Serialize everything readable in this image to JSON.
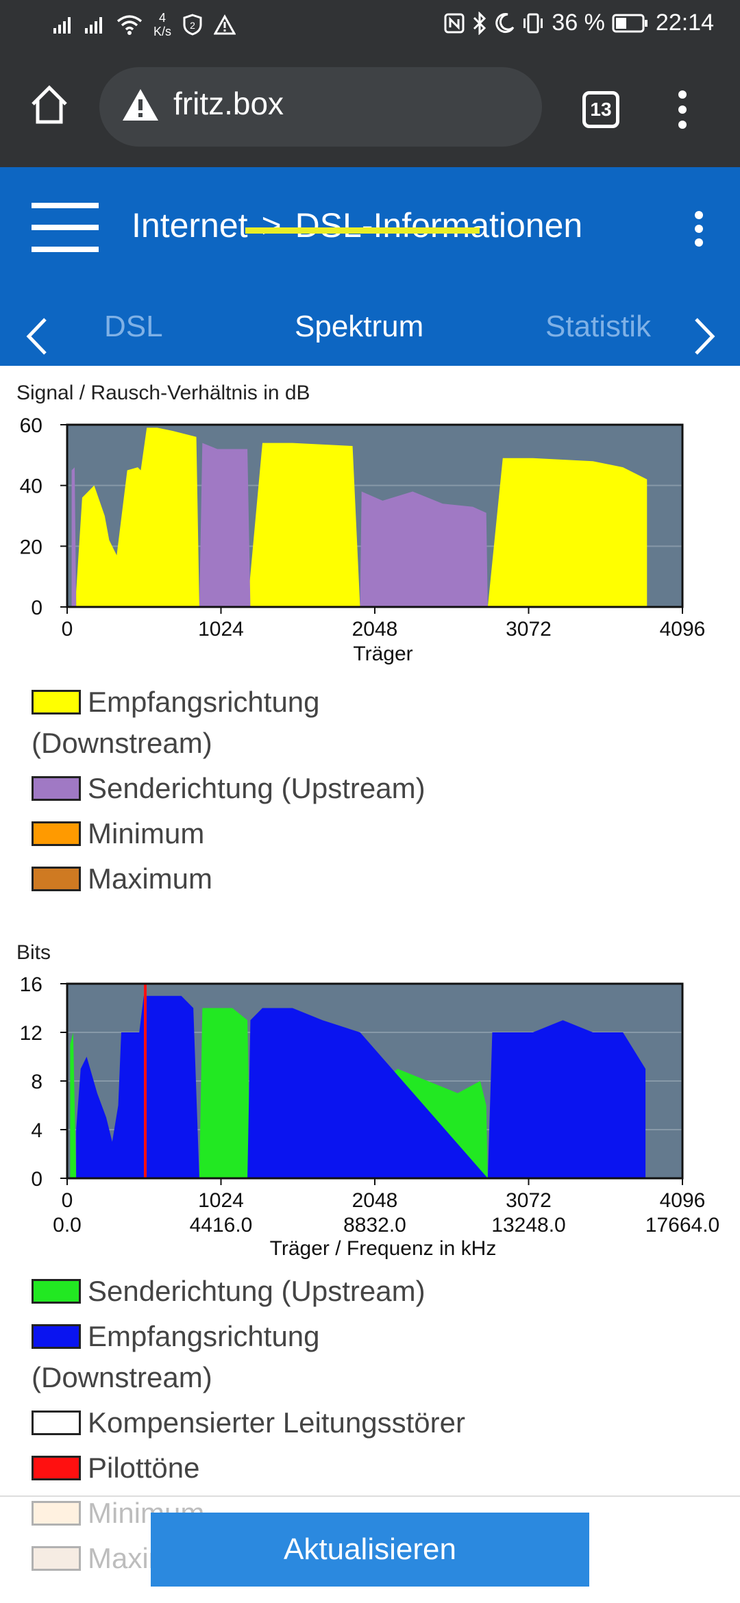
{
  "status_bar": {
    "speed_value": "4",
    "speed_unit": "K/s",
    "battery": "36 %",
    "time": "22:14",
    "icons": [
      "signal-icon",
      "signal-icon",
      "wifi-icon",
      "vpn-icon",
      "warning-icon",
      "nfc-icon",
      "bluetooth-icon",
      "moon-icon",
      "vibrate-icon",
      "battery-icon"
    ]
  },
  "browser": {
    "url": "fritz.box",
    "tab_count": "13"
  },
  "header": {
    "crumb_section": "Internet",
    "crumb_separator": ">",
    "crumb_page": "DSL-Informationen"
  },
  "tabs": [
    {
      "label": "DSL",
      "active": false
    },
    {
      "label": "Spektrum",
      "active": true
    },
    {
      "label": "Statistik",
      "active": false
    }
  ],
  "snr_chart": {
    "title": "Signal / Rausch-Verhältnis in dB",
    "xlabel": "Träger",
    "y_ticks": [
      "0",
      "20",
      "40",
      "60"
    ],
    "x_ticks": [
      "0",
      "1024",
      "2048",
      "3072",
      "4096"
    ],
    "legend": [
      {
        "label": "Empfangsrichtung (Downstream)",
        "color": "#ffff00"
      },
      {
        "label": "Senderichtung (Upstream)",
        "color": "#a079c4"
      },
      {
        "label": "Minimum",
        "color": "#ff9a00"
      },
      {
        "label": "Maximum",
        "color": "#cf7a22"
      }
    ]
  },
  "bits_chart": {
    "title": "Bits",
    "xlabel": "Träger / Frequenz in kHz",
    "y_ticks": [
      "0",
      "4",
      "8",
      "12",
      "16"
    ],
    "x_ticks": [
      "0",
      "1024",
      "2048",
      "3072",
      "4096"
    ],
    "x_freq_ticks": [
      "0.0",
      "4416.0",
      "8832.0",
      "13248.0",
      "17664.0"
    ],
    "legend": [
      {
        "label": "Senderichtung (Upstream)",
        "color": "#22e822"
      },
      {
        "label": "Empfangsrichtung (Downstream)",
        "color": "#0a14f0"
      },
      {
        "label": "Kompensierter Leitungsstörer",
        "color": "#ffffff"
      },
      {
        "label": "Pilottöne",
        "color": "#ff1010"
      },
      {
        "label": "Minimum",
        "color": "#ffd9a8"
      },
      {
        "label": "Maximum",
        "color": "#e6cbb0"
      }
    ]
  },
  "update_button": "Aktualisieren",
  "chart_data": [
    {
      "type": "area",
      "title": "Signal / Rausch-Verhältnis in dB",
      "xlabel": "Träger",
      "ylabel": "",
      "xlim": [
        0,
        4096
      ],
      "ylim": [
        0,
        60
      ],
      "series": [
        {
          "name": "Empfangsrichtung (Downstream)",
          "color": "#ffff00",
          "x": [
            60,
            100,
            180,
            250,
            280,
            330,
            400,
            470,
            490,
            530,
            600,
            700,
            860,
            880,
            1200,
            1300,
            1500,
            1900,
            1950,
            2800,
            2900,
            3100,
            3500,
            3700,
            3860
          ],
          "y": [
            5,
            36,
            40,
            30,
            22,
            17,
            45,
            46,
            45,
            59,
            59,
            58,
            56,
            0,
            0,
            54,
            54,
            53,
            0,
            0,
            49,
            49,
            48,
            46,
            42
          ]
        },
        {
          "name": "Senderichtung (Upstream)",
          "color": "#a079c4",
          "x": [
            30,
            50,
            60,
            880,
            900,
            1000,
            1200,
            1220,
            1950,
            1960,
            2100,
            2300,
            2500,
            2700,
            2790,
            2800
          ],
          "y": [
            45,
            46,
            0,
            0,
            54,
            52,
            52,
            0,
            0,
            38,
            35,
            38,
            34,
            33,
            31,
            0
          ]
        }
      ]
    },
    {
      "type": "area",
      "title": "Bits",
      "xlabel": "Träger / Frequenz in kHz",
      "ylabel": "",
      "xlim": [
        0,
        4096
      ],
      "ylim": [
        0,
        16
      ],
      "series": [
        {
          "name": "Senderichtung (Upstream)",
          "color": "#22e822",
          "x": [
            20,
            40,
            60,
            880,
            900,
            1100,
            1200,
            1220,
            1950,
            1960,
            2100,
            2200,
            2400,
            2600,
            2750,
            2790,
            2800
          ],
          "y": [
            11,
            12,
            0,
            0,
            14,
            14,
            13,
            0,
            0,
            8,
            8,
            9,
            8,
            7,
            8,
            6,
            0
          ]
        },
        {
          "name": "Empfangsrichtung (Downstream)",
          "color": "#0a14f0",
          "x": [
            60,
            90,
            130,
            200,
            260,
            300,
            340,
            360,
            420,
            480,
            510,
            540,
            600,
            760,
            840,
            880,
            1200,
            1220,
            1300,
            1500,
            1700,
            1950,
            2800,
            2830,
            3100,
            3300,
            3500,
            3700,
            3850
          ],
          "y": [
            4,
            9,
            10,
            7,
            5,
            3,
            6,
            12,
            12,
            12,
            15,
            15,
            15,
            15,
            14,
            0,
            0,
            13,
            14,
            14,
            13,
            12,
            0,
            12,
            12,
            13,
            12,
            12,
            9
          ]
        },
        {
          "name": "Pilottöne",
          "color": "#ff1010",
          "x": [
            520
          ],
          "y": [
            16
          ]
        }
      ]
    }
  ]
}
